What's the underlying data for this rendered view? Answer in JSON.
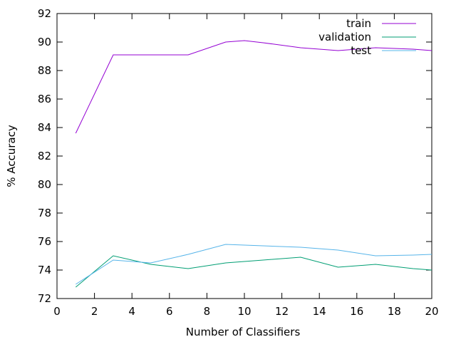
{
  "chart_data": {
    "type": "line",
    "title": "",
    "xlabel": "Number of Classifiers",
    "ylabel": "% Accuracy",
    "xlim": [
      0,
      20
    ],
    "ylim": [
      72,
      92
    ],
    "xticks": [
      0,
      2,
      4,
      6,
      8,
      10,
      12,
      14,
      16,
      18,
      20
    ],
    "yticks": [
      72,
      74,
      76,
      78,
      80,
      82,
      84,
      86,
      88,
      90,
      92
    ],
    "grid": false,
    "legend_position": "top-right",
    "series": [
      {
        "name": "train",
        "color": "#9400d3",
        "x": [
          1,
          3,
          5,
          7,
          9,
          10,
          11,
          13,
          15,
          17,
          19,
          20
        ],
        "y": [
          83.6,
          89.1,
          89.1,
          89.1,
          90.0,
          90.1,
          89.95,
          89.6,
          89.4,
          89.6,
          89.5,
          89.4
        ]
      },
      {
        "name": "validation",
        "color": "#009e73",
        "x": [
          1,
          3,
          5,
          7,
          9,
          11,
          13,
          15,
          17,
          19,
          20
        ],
        "y": [
          72.8,
          75.0,
          74.4,
          74.1,
          74.5,
          74.7,
          74.9,
          74.2,
          74.4,
          74.1,
          74.0
        ]
      },
      {
        "name": "test",
        "color": "#56b4e9",
        "x": [
          1,
          3,
          5,
          7,
          9,
          11,
          13,
          15,
          17,
          19,
          20
        ],
        "y": [
          73.0,
          74.7,
          74.5,
          75.1,
          75.8,
          75.7,
          75.6,
          75.4,
          75.0,
          75.05,
          75.1
        ]
      }
    ]
  }
}
